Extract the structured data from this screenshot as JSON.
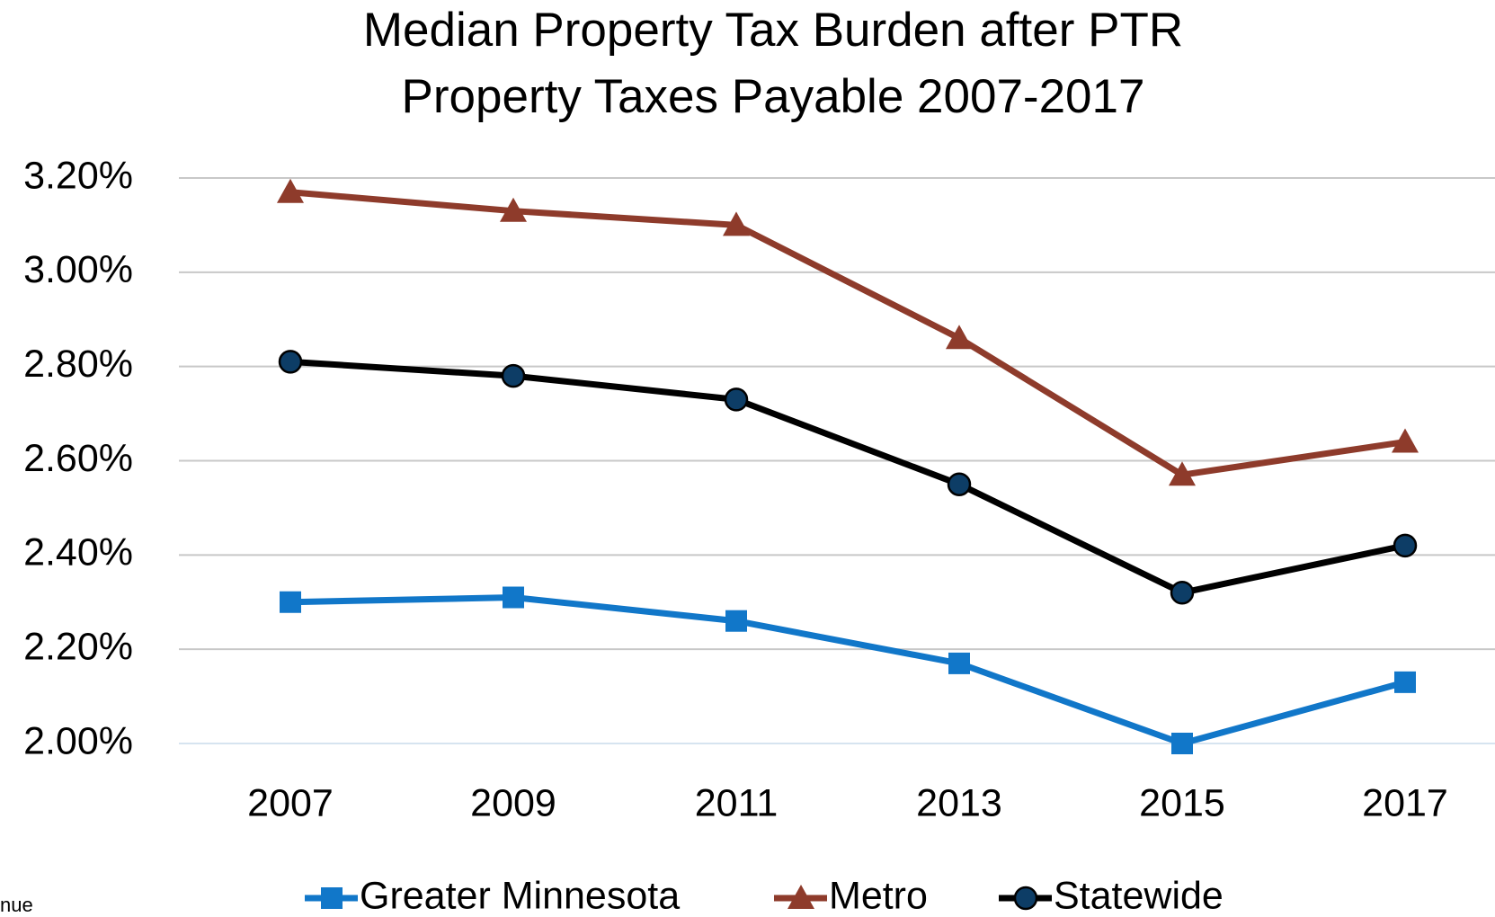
{
  "chart_data": {
    "type": "line",
    "title": "Median Property Tax Burden after PTR",
    "subtitle": "Property Taxes Payable 2007-2017",
    "categories": [
      "2007",
      "2009",
      "2011",
      "2013",
      "2015",
      "2017"
    ],
    "series": [
      {
        "name": "Greater Minnesota",
        "color": "#1177c9",
        "marker": "square",
        "values": [
          2.3,
          2.31,
          2.26,
          2.17,
          2.0,
          2.13
        ]
      },
      {
        "name": "Metro",
        "color": "#8e3b2b",
        "marker": "triangle",
        "values": [
          3.17,
          3.13,
          3.1,
          2.86,
          2.57,
          2.64
        ]
      },
      {
        "name": "Statewide",
        "color": "#000000",
        "marker_fill": "#0d3d66",
        "marker": "circle",
        "values": [
          2.81,
          2.78,
          2.73,
          2.55,
          2.32,
          2.42
        ]
      }
    ],
    "ylim": [
      2.0,
      3.2
    ],
    "yticks": [
      {
        "value": 2.0,
        "label": "2.00%"
      },
      {
        "value": 2.2,
        "label": "2.20%"
      },
      {
        "value": 2.4,
        "label": "2.40%"
      },
      {
        "value": 2.6,
        "label": "2.60%"
      },
      {
        "value": 2.8,
        "label": "2.80%"
      },
      {
        "value": 3.0,
        "label": "3.00%"
      },
      {
        "value": 3.2,
        "label": "3.20%"
      }
    ],
    "grid": true,
    "legend": "bottom",
    "source": "nue"
  }
}
